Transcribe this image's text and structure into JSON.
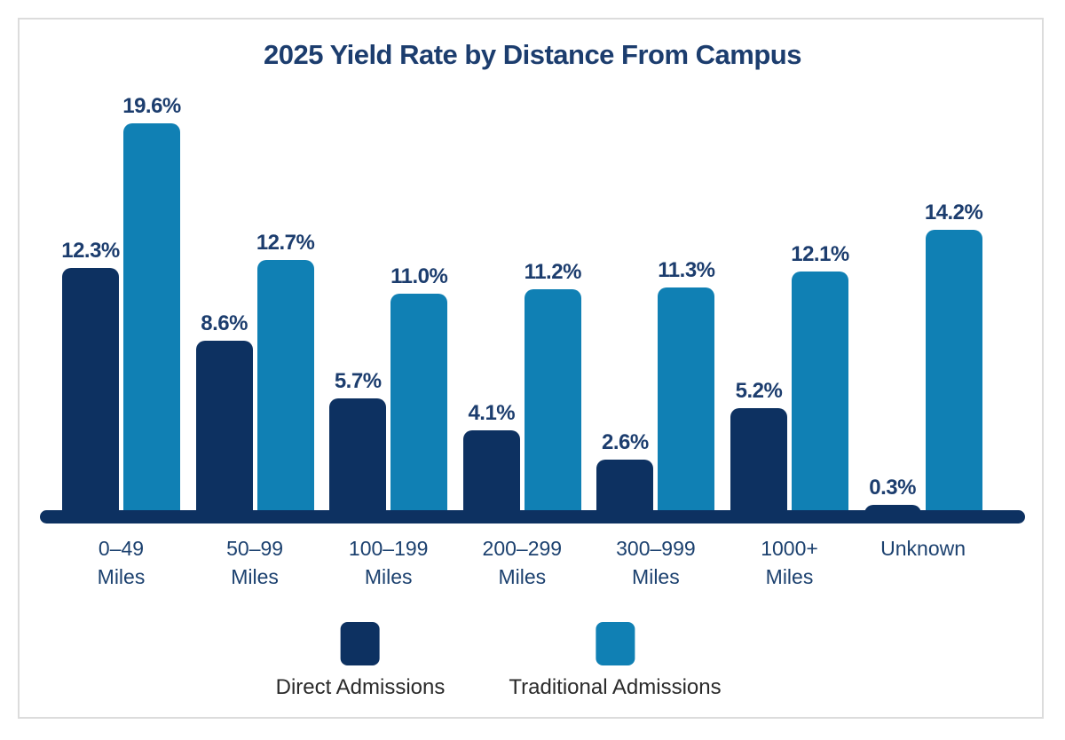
{
  "frame": {
    "border_color": "#dcdcdc",
    "background": "#ffffff"
  },
  "chart_data": {
    "type": "bar",
    "title": "2025 Yield Rate by Distance From Campus",
    "categories": [
      [
        "0–49",
        "Miles"
      ],
      [
        "50–99",
        "Miles"
      ],
      [
        "100–199",
        "Miles"
      ],
      [
        "200–299",
        "Miles"
      ],
      [
        "300–999",
        "Miles"
      ],
      [
        "1000+",
        "Miles"
      ],
      [
        "Unknown"
      ]
    ],
    "series": [
      {
        "name": "Direct Admissions",
        "color": "#0d3161",
        "values": [
          12.3,
          8.6,
          5.7,
          4.1,
          2.6,
          5.2,
          0.3
        ]
      },
      {
        "name": "Traditional Admissions",
        "color": "#1080b4",
        "values": [
          19.6,
          12.7,
          11.0,
          11.2,
          11.3,
          12.1,
          14.2
        ]
      }
    ],
    "value_suffix": "%",
    "value_label_decimals": 1,
    "ylim": [
      0,
      20
    ],
    "grid": false,
    "legend_position": "bottom",
    "xlabel": "",
    "ylabel": "",
    "colors": {
      "title_text": "#1c3d6e",
      "value_label_text": "#1c3d6e",
      "category_label_text": "#1c416f",
      "legend_label_text": "#2a2a2a",
      "axis_line": "#0d3161"
    }
  }
}
